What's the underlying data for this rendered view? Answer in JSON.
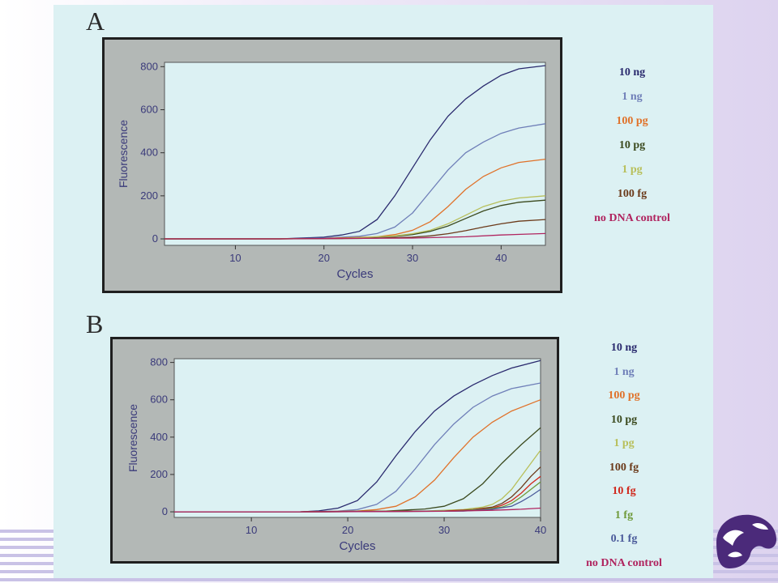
{
  "panels": [
    {
      "letter": "A"
    },
    {
      "letter": "B"
    }
  ],
  "colors": {
    "plot_bg": "#dcf1f3",
    "frame_bg": "#b3b8b6",
    "axis_text": "#3a3a7a"
  },
  "chart_data": [
    {
      "type": "line",
      "title": "",
      "xlabel": "Cycles",
      "ylabel": "Fluorescence",
      "xlim": [
        2,
        45
      ],
      "ylim": [
        -30,
        820
      ],
      "xticks": [
        10,
        20,
        30,
        40
      ],
      "yticks": [
        0,
        200,
        400,
        600,
        800
      ],
      "grid": false,
      "legend_position": "right",
      "series": [
        {
          "name": "10 ng",
          "color": "#2a2a6e",
          "x": [
            2,
            15,
            20,
            22,
            24,
            26,
            28,
            30,
            32,
            34,
            36,
            38,
            40,
            42,
            45
          ],
          "y": [
            0,
            0,
            8,
            18,
            35,
            90,
            200,
            330,
            460,
            570,
            650,
            710,
            760,
            790,
            805
          ]
        },
        {
          "name": "1 ng",
          "color": "#6f7fb8",
          "x": [
            2,
            15,
            20,
            24,
            26,
            28,
            30,
            32,
            34,
            36,
            38,
            40,
            42,
            45
          ],
          "y": [
            0,
            0,
            4,
            12,
            25,
            55,
            120,
            220,
            320,
            400,
            450,
            490,
            515,
            535
          ]
        },
        {
          "name": "100 pg",
          "color": "#e0722a",
          "x": [
            2,
            15,
            20,
            26,
            28,
            30,
            32,
            34,
            36,
            38,
            40,
            42,
            45
          ],
          "y": [
            0,
            0,
            2,
            10,
            20,
            40,
            80,
            150,
            230,
            290,
            330,
            355,
            370
          ]
        },
        {
          "name": "10 pg",
          "color": "#3b4a1e",
          "x": [
            2,
            15,
            22,
            28,
            30,
            32,
            34,
            36,
            38,
            40,
            42,
            45
          ],
          "y": [
            0,
            0,
            2,
            12,
            20,
            35,
            60,
            95,
            130,
            155,
            170,
            180
          ]
        },
        {
          "name": "1 pg",
          "color": "#b8bf5a",
          "x": [
            2,
            15,
            22,
            28,
            30,
            32,
            34,
            36,
            38,
            40,
            42,
            45
          ],
          "y": [
            0,
            0,
            2,
            14,
            24,
            40,
            70,
            110,
            150,
            175,
            190,
            200
          ]
        },
        {
          "name": "100 fg",
          "color": "#6b3a1a",
          "x": [
            2,
            15,
            24,
            30,
            32,
            34,
            36,
            38,
            40,
            42,
            45
          ],
          "y": [
            0,
            0,
            2,
            8,
            14,
            24,
            38,
            55,
            70,
            82,
            90
          ]
        },
        {
          "name": "no DNA control",
          "color": "#b0245f",
          "x": [
            2,
            15,
            30,
            36,
            40,
            45
          ],
          "y": [
            0,
            0,
            4,
            10,
            18,
            25
          ]
        }
      ]
    },
    {
      "type": "line",
      "title": "",
      "xlabel": "Cycles",
      "ylabel": "Fluorescence",
      "xlim": [
        2,
        40
      ],
      "ylim": [
        -30,
        820
      ],
      "xticks": [
        10,
        20,
        30,
        40
      ],
      "yticks": [
        0,
        200,
        400,
        600,
        800
      ],
      "grid": false,
      "legend_position": "right",
      "series": [
        {
          "name": "10 ng",
          "color": "#2a2a6e",
          "x": [
            2,
            15,
            17,
            19,
            21,
            23,
            25,
            27,
            29,
            31,
            33,
            35,
            37,
            40
          ],
          "y": [
            0,
            0,
            5,
            20,
            60,
            160,
            300,
            430,
            540,
            620,
            680,
            730,
            770,
            810
          ]
        },
        {
          "name": "1 ng",
          "color": "#6f7fb8",
          "x": [
            2,
            15,
            19,
            21,
            23,
            25,
            27,
            29,
            31,
            33,
            35,
            37,
            40
          ],
          "y": [
            0,
            0,
            4,
            12,
            40,
            110,
            230,
            360,
            470,
            560,
            620,
            660,
            690
          ]
        },
        {
          "name": "100 pg",
          "color": "#e0722a",
          "x": [
            2,
            15,
            21,
            23,
            25,
            27,
            29,
            31,
            33,
            35,
            37,
            40
          ],
          "y": [
            0,
            0,
            4,
            12,
            30,
            80,
            170,
            290,
            400,
            480,
            540,
            600
          ]
        },
        {
          "name": "10 pg",
          "color": "#3b4a1e",
          "x": [
            2,
            15,
            24,
            28,
            30,
            32,
            34,
            36,
            38,
            40
          ],
          "y": [
            0,
            0,
            4,
            15,
            30,
            70,
            150,
            260,
            360,
            450
          ]
        },
        {
          "name": "1 pg",
          "color": "#b8bf5a",
          "x": [
            2,
            15,
            28,
            32,
            34,
            35,
            36,
            37,
            38,
            39,
            40
          ],
          "y": [
            0,
            0,
            4,
            12,
            25,
            40,
            70,
            120,
            190,
            260,
            330
          ]
        },
        {
          "name": "100 fg",
          "color": "#6b3a1a",
          "x": [
            2,
            15,
            30,
            33,
            35,
            36,
            37,
            38,
            39,
            40
          ],
          "y": [
            0,
            0,
            4,
            12,
            25,
            45,
            80,
            130,
            190,
            240
          ]
        },
        {
          "name": "10 fg",
          "color": "#d0281c",
          "x": [
            2,
            15,
            30,
            33,
            35,
            36,
            37,
            38,
            39,
            40
          ],
          "y": [
            0,
            0,
            4,
            10,
            20,
            35,
            60,
            100,
            150,
            190
          ]
        },
        {
          "name": "1 fg",
          "color": "#6f9a3a",
          "x": [
            2,
            15,
            31,
            34,
            36,
            37,
            38,
            39,
            40
          ],
          "y": [
            0,
            0,
            4,
            12,
            25,
            45,
            80,
            120,
            160
          ]
        },
        {
          "name": "0.1 fg",
          "color": "#4a5a9a",
          "x": [
            2,
            15,
            32,
            35,
            37,
            38,
            39,
            40
          ],
          "y": [
            0,
            0,
            4,
            14,
            30,
            55,
            85,
            120
          ]
        },
        {
          "name": "no DNA control",
          "color": "#b0245f",
          "x": [
            2,
            15,
            30,
            35,
            38,
            40
          ],
          "y": [
            0,
            0,
            3,
            8,
            14,
            20
          ]
        }
      ]
    }
  ]
}
